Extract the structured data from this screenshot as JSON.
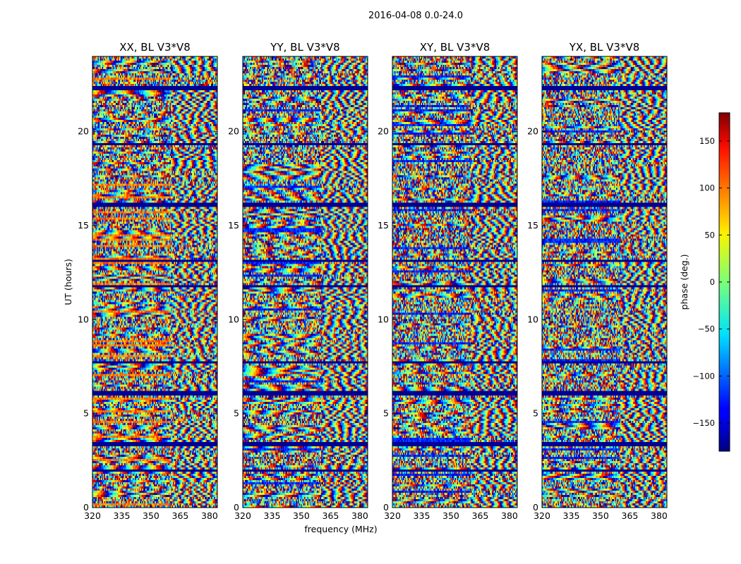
{
  "chart_data": {
    "type": "heatmap",
    "suptitle": "2016-04-08 0.0-24.0",
    "panels": [
      {
        "title": "XX, BL V3*V8",
        "polarization": "XX",
        "seed": 11,
        "banding": 0.55
      },
      {
        "title": "YY, BL V3*V8",
        "polarization": "YY",
        "seed": 23,
        "banding": 0.65
      },
      {
        "title": "XY, BL V3*V8",
        "polarization": "XY",
        "seed": 37,
        "banding": 0.25
      },
      {
        "title": "YX, BL V3*V8",
        "polarization": "YX",
        "seed": 53,
        "banding": 0.3
      }
    ],
    "xlabel": "frequency (MHz)",
    "ylabel": "UT (hours)",
    "xlim": [
      320,
      384
    ],
    "ylim": [
      0,
      24
    ],
    "xticks": [
      320,
      335,
      350,
      365,
      380
    ],
    "yticks": [
      0,
      5,
      10,
      15,
      20
    ],
    "colorbar": {
      "label": "phase (deg.)",
      "range": [
        -180,
        180
      ],
      "ticks": [
        150,
        100,
        50,
        0,
        -50,
        -100,
        -150
      ],
      "tick_labels": [
        "150",
        "100",
        "50",
        "0",
        "−50",
        "−100",
        "−150"
      ],
      "colormap": "jet"
    },
    "flagged_ut_hours": [
      22.3,
      19.3,
      16.1,
      13.1,
      11.8,
      7.7,
      6.1,
      3.4,
      2.0
    ],
    "flag_color": "#000080"
  }
}
